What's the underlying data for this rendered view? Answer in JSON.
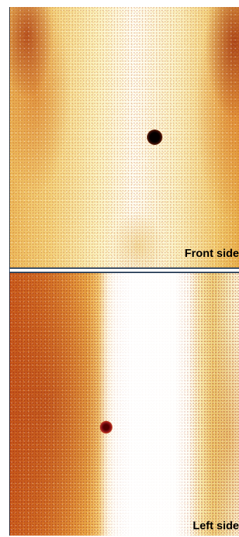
{
  "figure": {
    "panels": [
      {
        "label": "Front side"
      },
      {
        "label": "Left side"
      }
    ],
    "colors": {
      "warm_background": "#f4d37d",
      "dark_hotspot": "#050000",
      "red_hotspot": "#8e1119",
      "divider": "#30455e"
    }
  }
}
